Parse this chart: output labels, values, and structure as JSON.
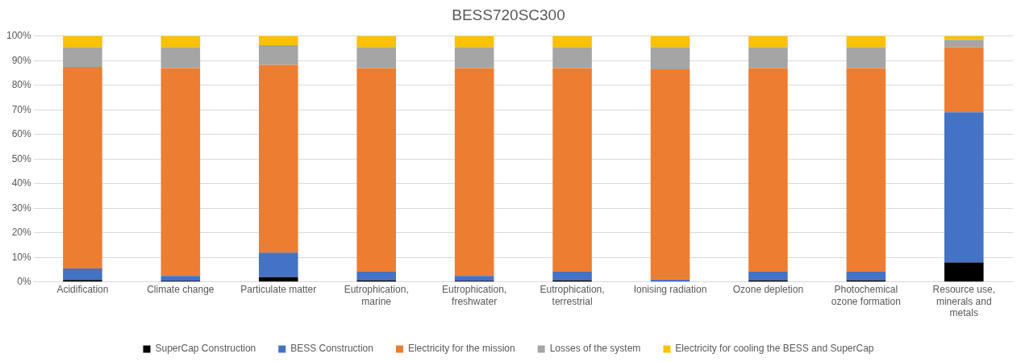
{
  "chart_data": {
    "type": "bar",
    "title": "BESS720SC300",
    "stacked": true,
    "grid": "y",
    "legend": "bottom",
    "categories": [
      "Acidification",
      "Climate change",
      "Particulate matter",
      "Eutrophication, marine",
      "Eutrophication, freshwater",
      "Eutrophication, terrestrial",
      "Ionising radiation",
      "Ozone depletion",
      "Photochemical ozone formation",
      "Resource use, minerals and metals"
    ],
    "series": [
      {
        "name": "SuperCap Construction",
        "color": "#000000",
        "values": [
          0.8,
          0.5,
          2,
          0.7,
          0.5,
          0.7,
          null,
          0.7,
          0.7,
          8
        ]
      },
      {
        "name": "BESS Construction",
        "color": "#4472c4",
        "values": [
          4.7,
          2,
          10,
          3.5,
          2,
          3.5,
          1,
          3.5,
          3.5,
          61
        ]
      },
      {
        "name": "Electricity for the mission",
        "color": "#ed7d31",
        "values": [
          82,
          84.5,
          76.3,
          82.8,
          84.5,
          82.8,
          85.5,
          82.8,
          82.8,
          26.5
        ]
      },
      {
        "name": "Losses of the system",
        "color": "#a5a5a5",
        "values": [
          8,
          8.5,
          8,
          8.5,
          8.5,
          8.5,
          9,
          8.5,
          8.5,
          3
        ]
      },
      {
        "name": "Electricity for cooling the BESS and SuperCap",
        "color": "#ffc000",
        "values": [
          4.5,
          4.5,
          3.7,
          4.5,
          4.5,
          4.5,
          4.5,
          4.5,
          4.5,
          1.5
        ]
      }
    ],
    "ylim": [
      0,
      100
    ],
    "yticks": [
      {
        "value": 0,
        "label": "0%"
      },
      {
        "value": 10,
        "label": "10%"
      },
      {
        "value": 20,
        "label": "20%"
      },
      {
        "value": 30,
        "label": "30%"
      },
      {
        "value": 40,
        "label": "40%"
      },
      {
        "value": 50,
        "label": "50%"
      },
      {
        "value": 60,
        "label": "60%"
      },
      {
        "value": 70,
        "label": "70%"
      },
      {
        "value": 80,
        "label": "80%"
      },
      {
        "value": 90,
        "label": "90%"
      },
      {
        "value": 100,
        "label": "100%"
      }
    ]
  }
}
